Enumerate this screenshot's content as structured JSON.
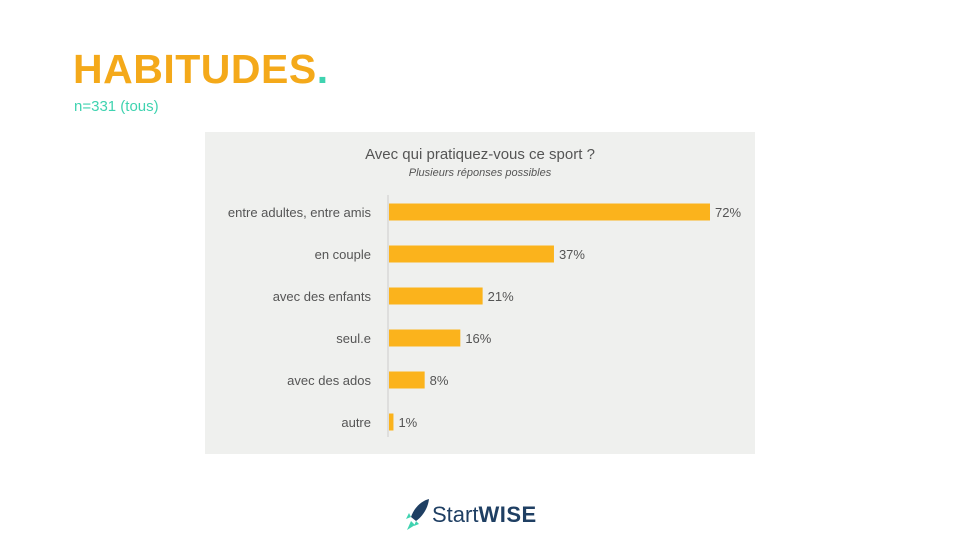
{
  "page": {
    "title": "HABITUDES",
    "title_dot": ".",
    "subtitle": "n=331 (tous)",
    "title_color": "#f4a91a",
    "accent_color": "#3fd3b0"
  },
  "chart_data": {
    "type": "bar",
    "orientation": "horizontal",
    "title": "Avec qui pratiquez-vous ce sport ?",
    "subtitle": "Plusieurs réponses possibles",
    "categories": [
      "entre adultes, entre amis",
      "en couple",
      "avec des enfants",
      "seul.e",
      "avec des ados",
      "autre"
    ],
    "values": [
      72,
      37,
      21,
      16,
      8,
      1
    ],
    "value_labels": [
      "72%",
      "37%",
      "21%",
      "16%",
      "8%",
      "1%"
    ],
    "unit": "%",
    "xlim": [
      0,
      72
    ],
    "grid": false,
    "legend": "none",
    "bar_color": "#fbb31c",
    "background_color": "#eff0ee"
  },
  "footer": {
    "logo_text_light": "Start",
    "logo_text_bold": "WISE",
    "logo_color": "#1f3f63",
    "logo_accent": "#3fd3b0"
  }
}
